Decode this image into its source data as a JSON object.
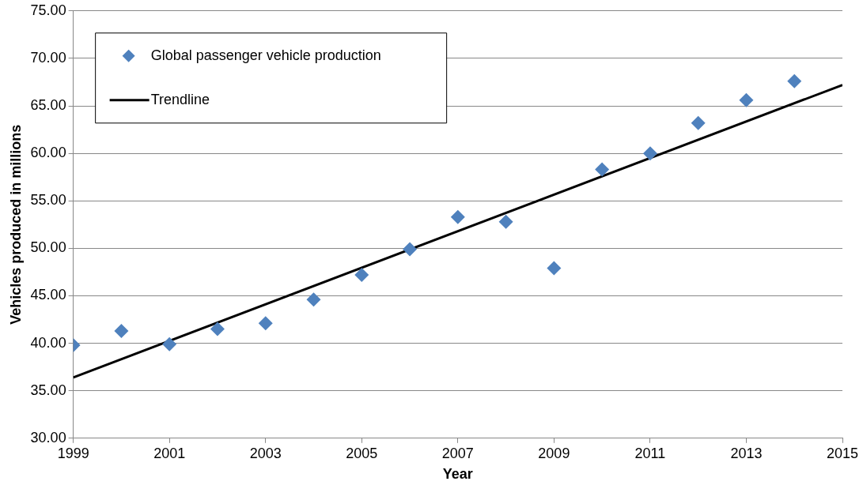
{
  "chart_data": {
    "type": "scatter",
    "xlabel": "Year",
    "ylabel": "Vehicles produced in millions",
    "xlim": [
      1999,
      2015
    ],
    "xticks": [
      1999,
      2001,
      2003,
      2005,
      2007,
      2009,
      2011,
      2013,
      2015
    ],
    "ylim": [
      30,
      75
    ],
    "yticks": [
      {
        "value": 30,
        "label": "30.00"
      },
      {
        "value": 35,
        "label": "35.00"
      },
      {
        "value": 40,
        "label": "40.00"
      },
      {
        "value": 45,
        "label": "45.00"
      },
      {
        "value": 50,
        "label": "50.00"
      },
      {
        "value": 55,
        "label": "55.00"
      },
      {
        "value": 60,
        "label": "60.00"
      },
      {
        "value": 65,
        "label": "65.00"
      },
      {
        "value": 70,
        "label": "70.00"
      },
      {
        "value": 75,
        "label": "75.00"
      }
    ],
    "grid": "y",
    "legend": "top left",
    "marker": "diamond",
    "series": [
      {
        "name": "Global passenger vehicle production",
        "color": "#4f81bd",
        "x": [
          1999,
          2000,
          2001,
          2002,
          2003,
          2004,
          2005,
          2006,
          2007,
          2008,
          2009,
          2010,
          2011,
          2012,
          2013,
          2014
        ],
        "values": [
          39.8,
          41.3,
          39.9,
          41.5,
          42.1,
          44.6,
          47.2,
          49.9,
          53.3,
          52.8,
          47.9,
          58.3,
          60.0,
          63.2,
          65.6,
          67.6
        ]
      },
      {
        "name": "Trendline",
        "type": "line",
        "color": "#000000",
        "marker": "none",
        "line_style": "solid",
        "x": [
          1999,
          2015
        ],
        "values": [
          36.4,
          67.2
        ]
      }
    ]
  }
}
